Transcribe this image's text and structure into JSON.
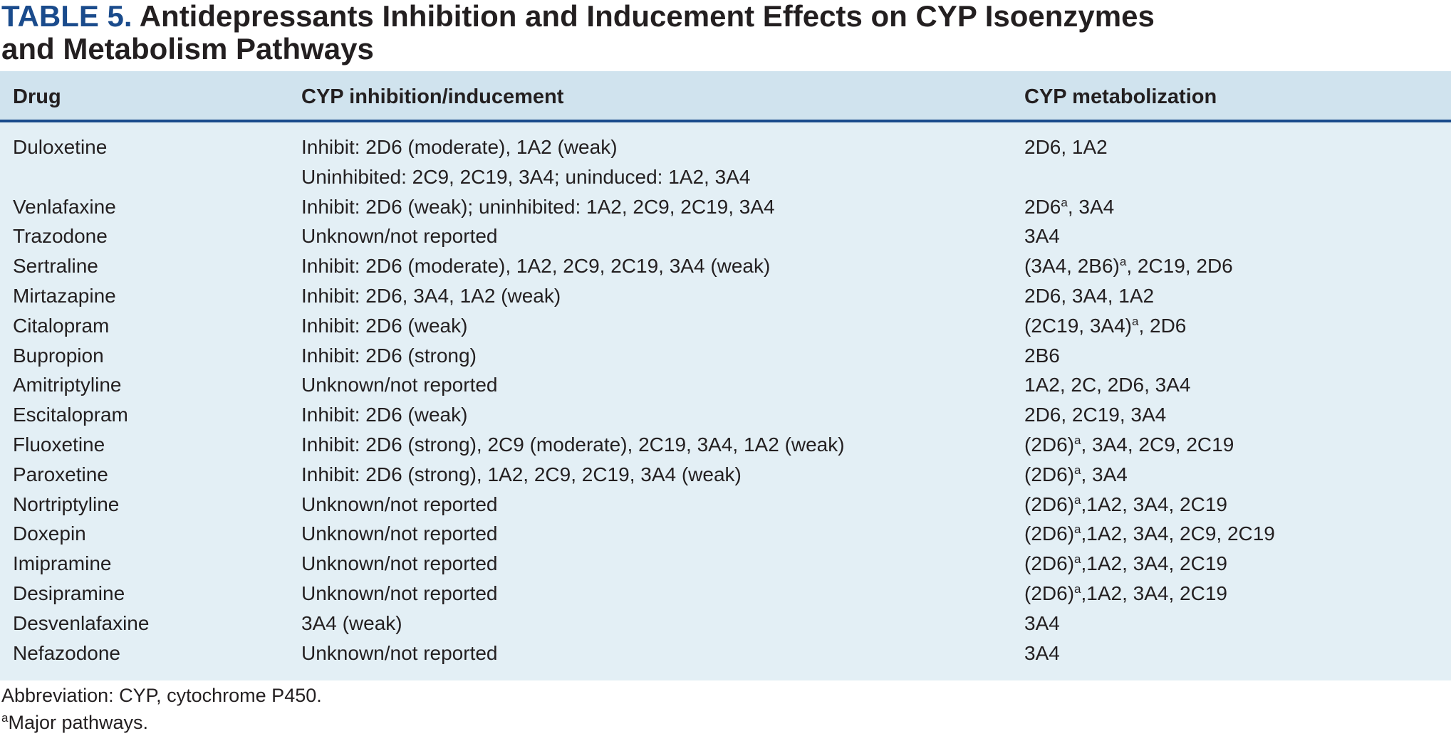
{
  "title": {
    "label": "TABLE 5.",
    "line1": "Antidepressants Inhibition and Inducement Effects on CYP Isoenzymes",
    "line2": "and Metabolism Pathways"
  },
  "colors": {
    "title_label": "#1a4b8c",
    "header_bg": "#d0e3ee",
    "body_bg": "#e3eff5",
    "header_rule": "#1a4b8c"
  },
  "table": {
    "headers": [
      "Drug",
      "CYP inhibition/inducement",
      "CYP metabolization"
    ],
    "rows": [
      {
        "drug": "Duloxetine",
        "inhibition": "Inhibit: 2D6 (moderate), 1A2 (weak)",
        "inhibition2": "Uninhibited: 2C9, 2C19, 3A4; uninduced: 1A2, 3A4",
        "met_pre": "",
        "met_sup": "",
        "met_post": "2D6, 1A2"
      },
      {
        "drug": "Venlafaxine",
        "inhibition": "Inhibit: 2D6 (weak); uninhibited: 1A2, 2C9, 2C19, 3A4",
        "met_pre": "2D6",
        "met_sup": "a",
        "met_post": ", 3A4"
      },
      {
        "drug": "Trazodone",
        "inhibition": "Unknown/not reported",
        "met_pre": "",
        "met_sup": "",
        "met_post": "3A4"
      },
      {
        "drug": "Sertraline",
        "inhibition": "Inhibit: 2D6 (moderate), 1A2, 2C9, 2C19, 3A4 (weak)",
        "met_pre": "(3A4, 2B6)",
        "met_sup": "a",
        "met_post": ", 2C19, 2D6"
      },
      {
        "drug": "Mirtazapine",
        "inhibition": "Inhibit: 2D6, 3A4, 1A2 (weak)",
        "met_pre": "",
        "met_sup": "",
        "met_post": "2D6, 3A4, 1A2"
      },
      {
        "drug": "Citalopram",
        "inhibition": "Inhibit: 2D6 (weak)",
        "met_pre": "(2C19, 3A4)",
        "met_sup": "a",
        "met_post": ", 2D6"
      },
      {
        "drug": "Bupropion",
        "inhibition": "Inhibit: 2D6 (strong)",
        "met_pre": "",
        "met_sup": "",
        "met_post": "2B6"
      },
      {
        "drug": "Amitriptyline",
        "inhibition": "Unknown/not reported",
        "met_pre": "",
        "met_sup": "",
        "met_post": "1A2, 2C, 2D6, 3A4"
      },
      {
        "drug": "Escitalopram",
        "inhibition": "Inhibit: 2D6 (weak)",
        "met_pre": "",
        "met_sup": "",
        "met_post": "2D6, 2C19, 3A4"
      },
      {
        "drug": "Fluoxetine",
        "inhibition": "Inhibit: 2D6 (strong), 2C9 (moderate), 2C19, 3A4, 1A2 (weak)",
        "met_pre": "(2D6)",
        "met_sup": "a",
        "met_post": ", 3A4, 2C9, 2C19"
      },
      {
        "drug": "Paroxetine",
        "inhibition": "Inhibit: 2D6 (strong), 1A2, 2C9, 2C19, 3A4 (weak)",
        "met_pre": "(2D6)",
        "met_sup": "a",
        "met_post": ", 3A4"
      },
      {
        "drug": "Nortriptyline",
        "inhibition": "Unknown/not reported",
        "met_pre": "(2D6)",
        "met_sup": "a",
        "met_post": ",1A2, 3A4, 2C19"
      },
      {
        "drug": "Doxepin",
        "inhibition": "Unknown/not reported",
        "met_pre": "(2D6)",
        "met_sup": "a",
        "met_post": ",1A2, 3A4, 2C9, 2C19"
      },
      {
        "drug": "Imipramine",
        "inhibition": "Unknown/not reported",
        "met_pre": "(2D6)",
        "met_sup": "a",
        "met_post": ",1A2, 3A4, 2C19"
      },
      {
        "drug": "Desipramine",
        "inhibition": "Unknown/not reported",
        "met_pre": "(2D6)",
        "met_sup": "a",
        "met_post": ",1A2, 3A4, 2C19"
      },
      {
        "drug": "Desvenlafaxine",
        "inhibition": "3A4 (weak)",
        "met_pre": "",
        "met_sup": "",
        "met_post": "3A4"
      },
      {
        "drug": "Nefazodone",
        "inhibition": "Unknown/not reported",
        "met_pre": "",
        "met_sup": "",
        "met_post": "3A4"
      }
    ]
  },
  "footnotes": {
    "abbreviation": "Abbreviation: CYP, cytochrome P450.",
    "major_sup": "a",
    "major_text": "Major pathways."
  }
}
